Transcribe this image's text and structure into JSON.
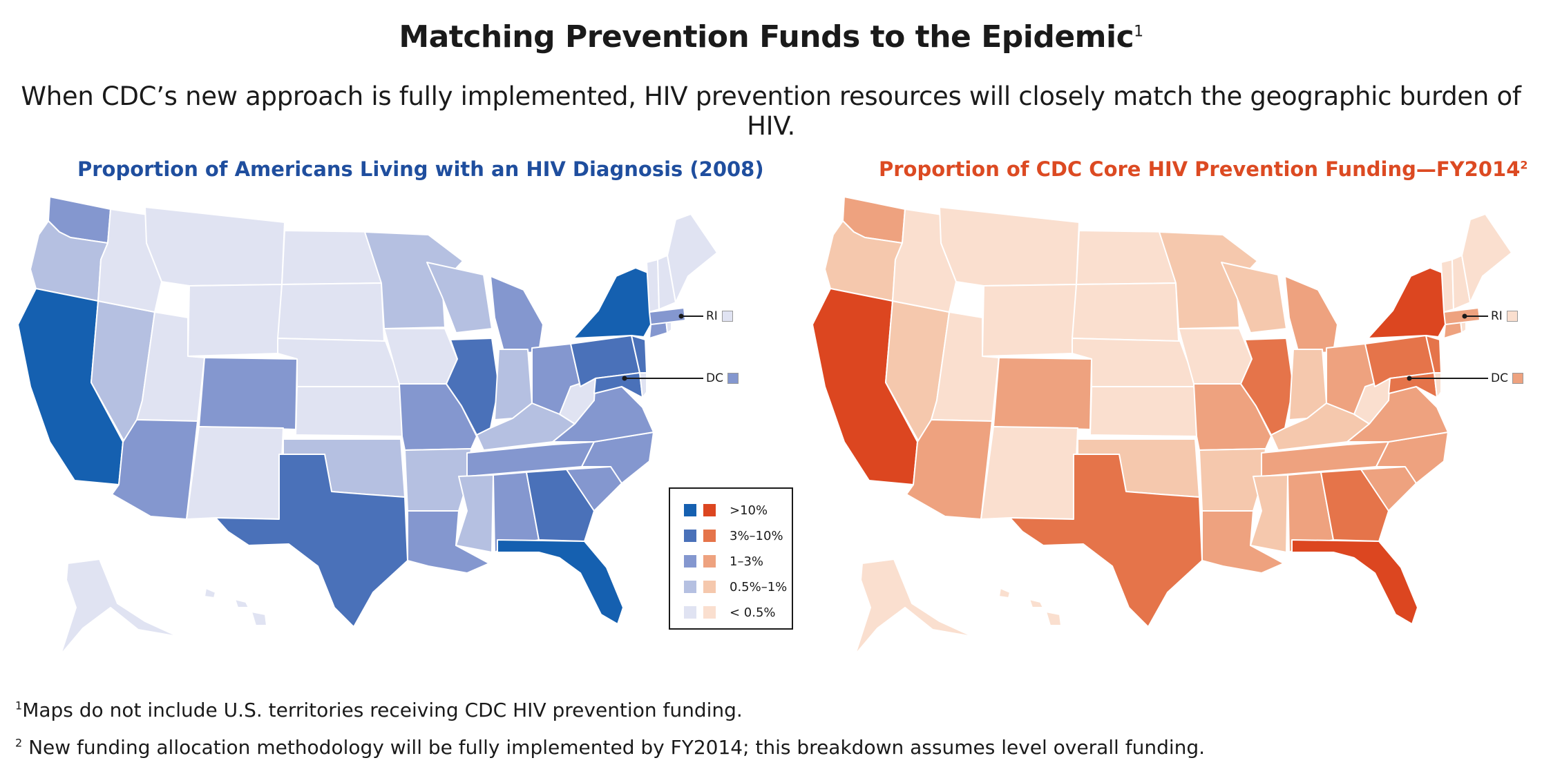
{
  "title": "Matching Prevention Funds to the Epidemic",
  "title_sup": "1",
  "subtitle": "When CDC’s new approach is fully implemented, HIV prevention resources will closely match the geographic burden of HIV.",
  "maps": {
    "left": {
      "title": "Proportion of Americans Living with an HIV Diagnosis (2008)",
      "palette": [
        "#1560b0",
        "#4a71b9",
        "#8497cf",
        "#b5c0e1",
        "#e0e3f2"
      ]
    },
    "right": {
      "title": "Proportion of CDC Core HIV Prevention Funding—FY2014",
      "title_sup": "2",
      "palette": [
        "#dc4620",
        "#e5744a",
        "#eea27f",
        "#f5c8ad",
        "#fadfcf"
      ]
    }
  },
  "legend": {
    "items": [
      {
        "label": ">10%"
      },
      {
        "label": "3%–10%"
      },
      {
        "label": "1–3%"
      },
      {
        "label": "0.5%–1%"
      },
      {
        "label": "< 0.5%"
      }
    ]
  },
  "callouts": {
    "ri": "RI",
    "dc": "DC"
  },
  "state_categories": {
    "note": "index into palette: 0 = >10%, 1 = 3%-10%, 2 = 1-3%, 3 = 0.5%-1%, 4 = < 0.5%",
    "left": {
      "CA": 0,
      "NY": 0,
      "FL": 0,
      "TX": 1,
      "GA": 1,
      "IL": 1,
      "PA": 1,
      "NJ": 1,
      "MD": 1,
      "WA": 2,
      "CO": 2,
      "AZ": 2,
      "MO": 2,
      "MI": 2,
      "OH": 2,
      "VA": 2,
      "NC": 2,
      "SC": 2,
      "AL": 2,
      "TN": 2,
      "LA": 2,
      "MA": 2,
      "CT": 2,
      "DC": 2,
      "OR": 3,
      "NV": 3,
      "MN": 3,
      "WI": 3,
      "OK": 3,
      "AR": 3,
      "MS": 3,
      "KY": 3,
      "IN": 3,
      "ID": 4,
      "MT": 4,
      "WY": 4,
      "UT": 4,
      "NM": 4,
      "ND": 4,
      "SD": 4,
      "NE": 4,
      "KS": 4,
      "IA": 4,
      "WV": 4,
      "ME": 4,
      "NH": 4,
      "VT": 4,
      "RI": 4,
      "DE": 4,
      "AK": 4,
      "HI": 4
    },
    "right": {
      "CA": 0,
      "NY": 0,
      "FL": 0,
      "TX": 1,
      "GA": 1,
      "IL": 1,
      "PA": 1,
      "NJ": 1,
      "MD": 1,
      "WA": 2,
      "CO": 2,
      "AZ": 2,
      "MO": 2,
      "MI": 2,
      "OH": 2,
      "VA": 2,
      "NC": 2,
      "SC": 2,
      "AL": 2,
      "TN": 2,
      "LA": 2,
      "MA": 2,
      "CT": 2,
      "DC": 2,
      "OR": 3,
      "NV": 3,
      "MN": 3,
      "WI": 3,
      "OK": 3,
      "AR": 3,
      "MS": 3,
      "KY": 3,
      "IN": 3,
      "ID": 4,
      "MT": 4,
      "WY": 4,
      "UT": 4,
      "NM": 4,
      "ND": 4,
      "SD": 4,
      "NE": 4,
      "KS": 4,
      "IA": 4,
      "WV": 4,
      "ME": 4,
      "NH": 4,
      "VT": 4,
      "RI": 4,
      "DE": 4,
      "AK": 4,
      "HI": 4
    }
  },
  "footnotes": [
    {
      "mark": "1",
      "text": "Maps do not include U.S. territories receiving CDC HIV prevention funding."
    },
    {
      "mark": "2",
      "text": " New funding allocation methodology will be fully implemented by FY2014; this breakdown assumes level overall funding."
    }
  ]
}
